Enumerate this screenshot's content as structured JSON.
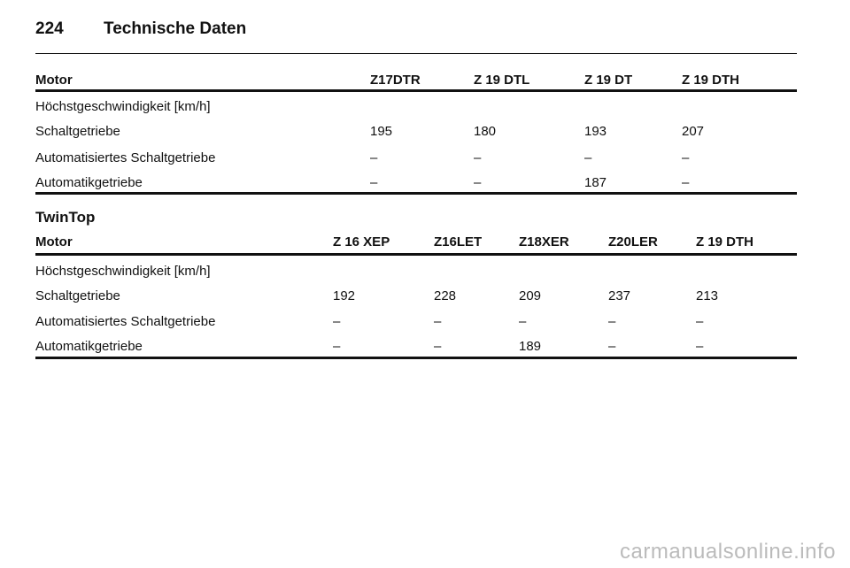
{
  "header": {
    "page": "224",
    "title": "Technische Daten"
  },
  "table1": {
    "columns": [
      "Motor",
      "Z17DTR",
      "Z 19 DTL",
      "Z 19 DT",
      "Z 19 DTH"
    ],
    "rows": [
      [
        "Höchstgeschwindigkeit [km/h]"
      ],
      [
        "Schaltgetriebe",
        195,
        180,
        193,
        207
      ],
      [
        "Automatisiertes Schaltgetriebe",
        "–",
        "–",
        "–",
        "–"
      ],
      [
        "Automatikgetriebe",
        "–",
        "–",
        187,
        "–"
      ]
    ]
  },
  "section": {
    "title": "TwinTop"
  },
  "table2": {
    "columns": [
      "Motor",
      "Z 16 XEP",
      "Z16LET",
      "Z18XER",
      "Z20LER",
      "Z 19 DTH"
    ],
    "rows": [
      [
        "Höchstgeschwindigkeit [km/h]"
      ],
      [
        "Schaltgetriebe",
        192,
        228,
        209,
        237,
        213
      ],
      [
        "Automatisiertes Schaltgetriebe",
        "–",
        "–",
        "–",
        "–",
        "–"
      ],
      [
        "Automatikgetriebe",
        "–",
        "–",
        189,
        "–",
        "–"
      ]
    ]
  },
  "footer": {
    "watermark": "carmanualsonline.info"
  }
}
